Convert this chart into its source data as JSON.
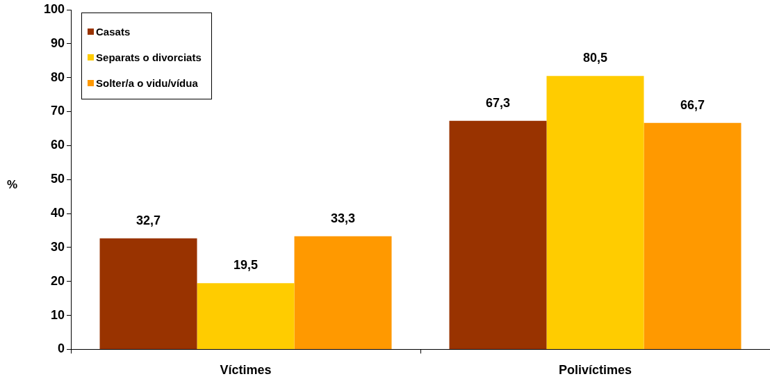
{
  "chart_data": {
    "type": "bar",
    "ylabel": "%",
    "categories": [
      "Víctimes",
      "Polivíctimes"
    ],
    "series": [
      {
        "name": "Casats",
        "color": "#993300",
        "values": [
          32.7,
          67.3
        ],
        "value_labels": [
          "32,7",
          "67,3"
        ]
      },
      {
        "name": "Separats o divorciats",
        "color": "#ffcc00",
        "values": [
          19.5,
          80.5
        ],
        "value_labels": [
          "19,5",
          "80,5"
        ]
      },
      {
        "name": "Solter/a o vidu/vídua",
        "color": "#ff9900",
        "values": [
          33.3,
          66.7
        ],
        "value_labels": [
          "33,3",
          "66,7"
        ]
      }
    ],
    "ylim": [
      0,
      100
    ],
    "yticks": [
      0,
      10,
      20,
      30,
      40,
      50,
      60,
      70,
      80,
      90,
      100
    ],
    "grid": false,
    "legend": "top left"
  }
}
